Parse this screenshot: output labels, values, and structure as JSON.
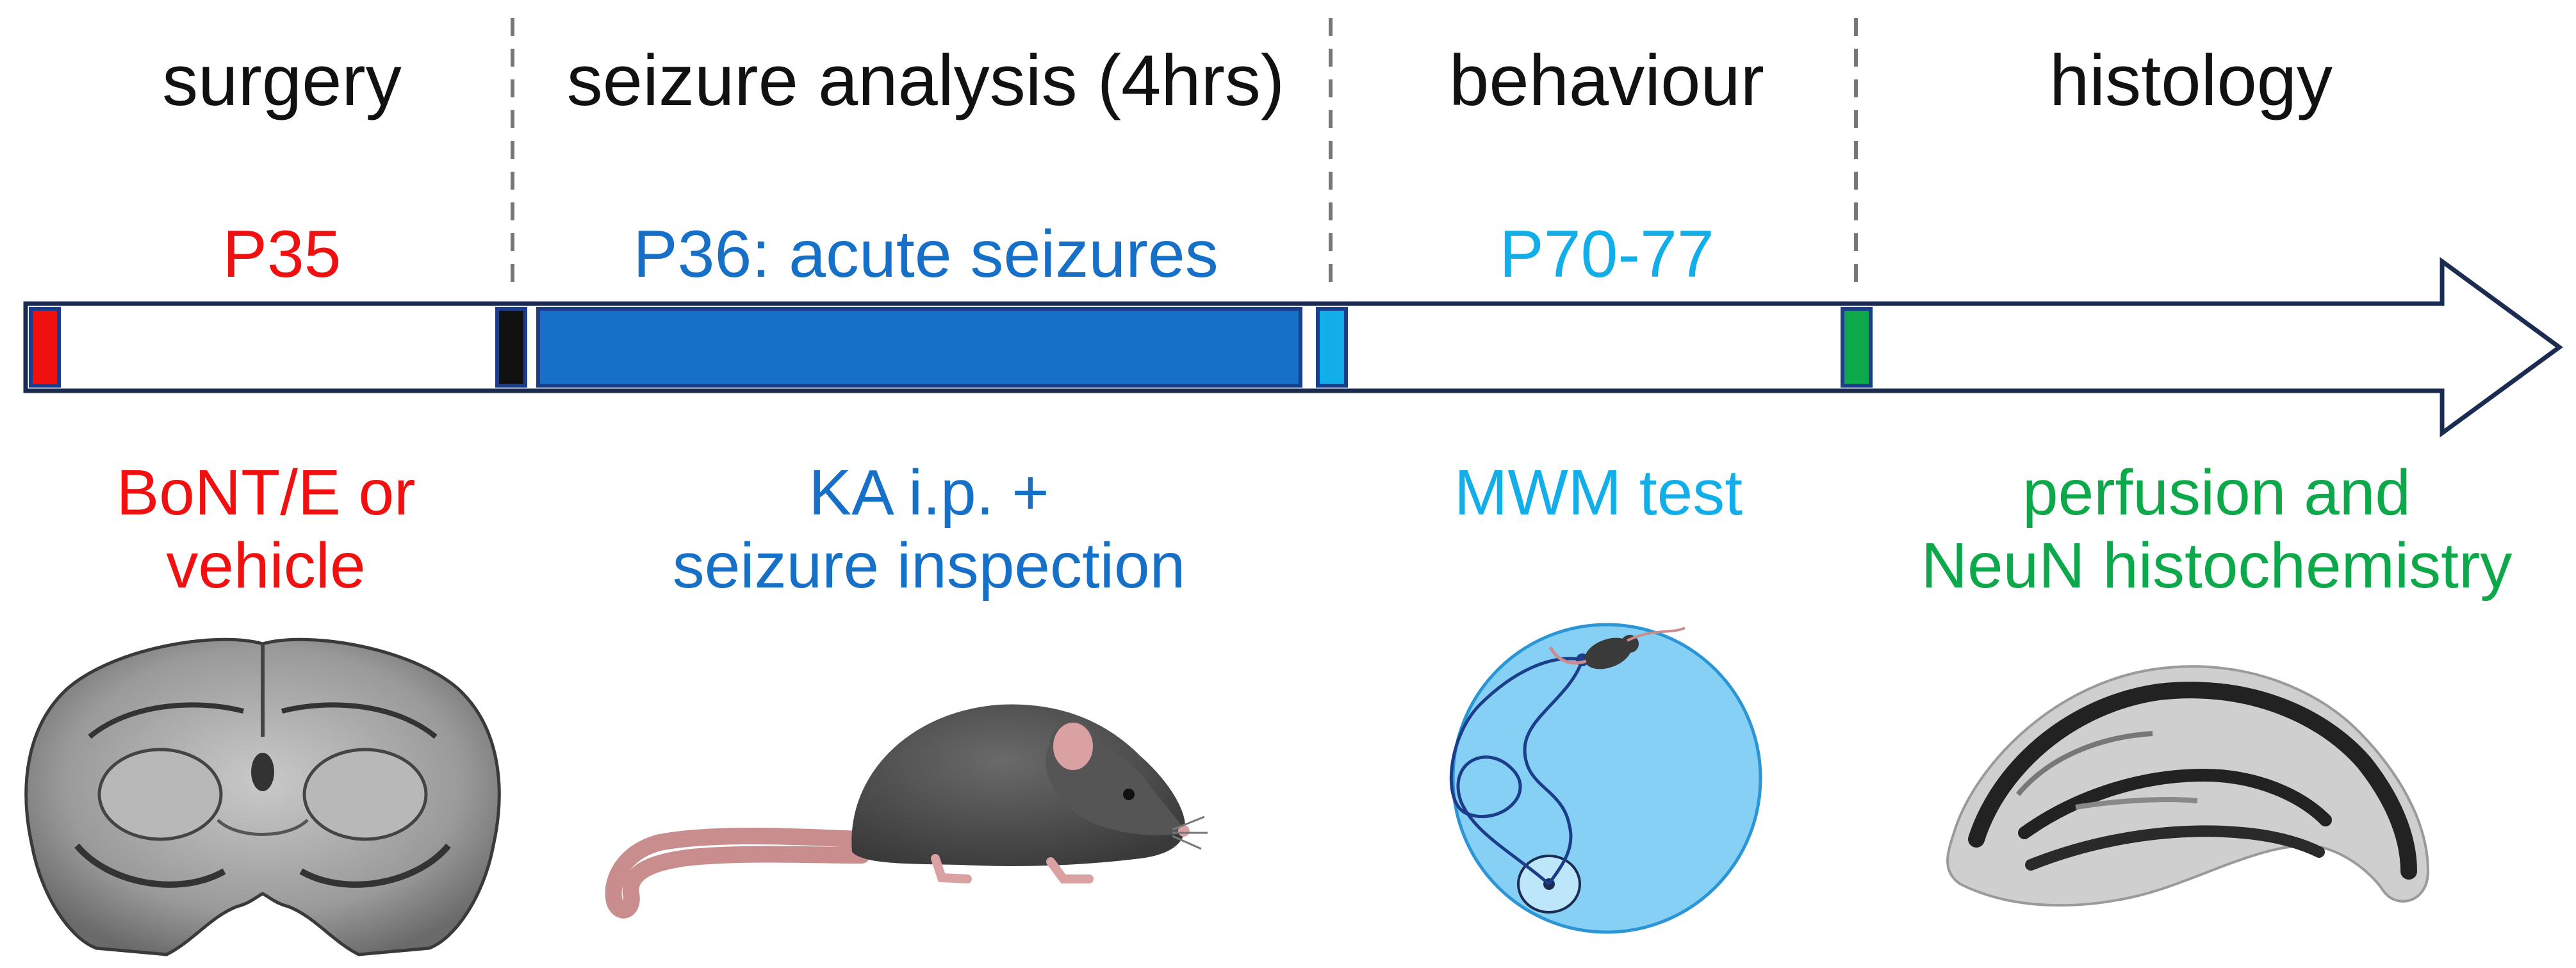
{
  "colors": {
    "red": "#f01010",
    "dark_blue": "#1670c8",
    "light_blue": "#12aeea",
    "green": "#0ca84a",
    "outline": "#1b2b52",
    "divider": "#777777",
    "black": "#111111"
  },
  "phases": [
    {
      "label": "surgery"
    },
    {
      "label": "seizure analysis (4hrs)"
    },
    {
      "label": "behaviour"
    },
    {
      "label": "histology"
    }
  ],
  "days": [
    {
      "label": "P35"
    },
    {
      "label": "P36: acute seizures"
    },
    {
      "label": "P70-77"
    }
  ],
  "procedures": [
    {
      "line1": "BoNT/E or",
      "line2": "vehicle"
    },
    {
      "line1": "KA i.p. +",
      "line2": "seizure inspection"
    },
    {
      "line1": "MWM test",
      "line2": ""
    },
    {
      "line1": "perfusion and",
      "line2": "NeuN histochemistry"
    }
  ],
  "illustrations": [
    {
      "icon": "brain-coronal-section-icon"
    },
    {
      "icon": "mouse-icon"
    },
    {
      "icon": "water-maze-icon"
    },
    {
      "icon": "hippocampus-section-icon"
    }
  ]
}
